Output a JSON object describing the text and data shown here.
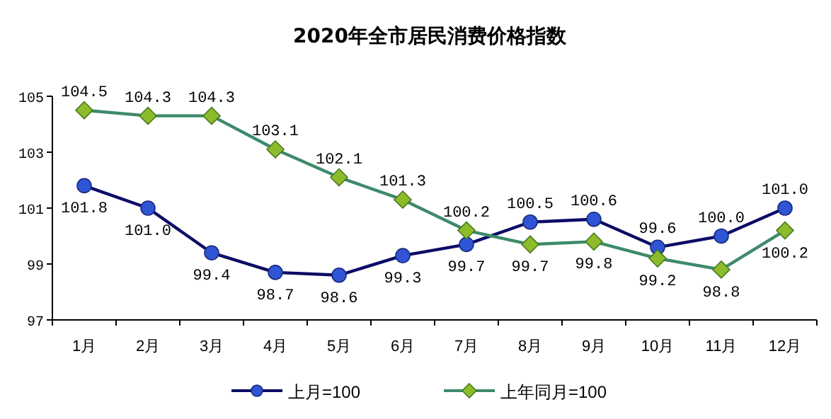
{
  "chart_data": {
    "type": "line",
    "title": "2020年全市居民消费价格指数",
    "categories": [
      "1月",
      "2月",
      "3月",
      "4月",
      "5月",
      "6月",
      "7月",
      "8月",
      "9月",
      "10月",
      "11月",
      "12月"
    ],
    "series": [
      {
        "name": "上月=100",
        "color": "#2f55d4",
        "marker": "circle",
        "values": [
          101.8,
          101.0,
          99.4,
          98.7,
          98.6,
          99.3,
          99.7,
          100.5,
          100.6,
          99.6,
          100.0,
          101.0
        ],
        "value_labels": [
          "101.8",
          "101.0",
          "99.4",
          "98.7",
          "98.6",
          "99.3",
          "99.7",
          "100.5",
          "100.6",
          "99.6",
          "100.0",
          "101.0"
        ]
      },
      {
        "name": "上年同月=100",
        "color": "#8cbc2c",
        "marker": "diamond",
        "values": [
          104.5,
          104.3,
          104.3,
          103.1,
          102.1,
          101.3,
          100.2,
          99.7,
          99.8,
          99.2,
          98.8,
          100.2
        ],
        "value_labels": [
          "104.5",
          "104.3",
          "104.3",
          "103.1",
          "102.1",
          "101.3",
          "100.2",
          "99.7",
          "99.8",
          "99.2",
          "98.8",
          "100.2"
        ]
      }
    ],
    "ylim": [
      97,
      105
    ],
    "yticks": [
      97,
      99,
      101,
      103,
      105
    ],
    "grid": false,
    "legend": "bottom"
  }
}
